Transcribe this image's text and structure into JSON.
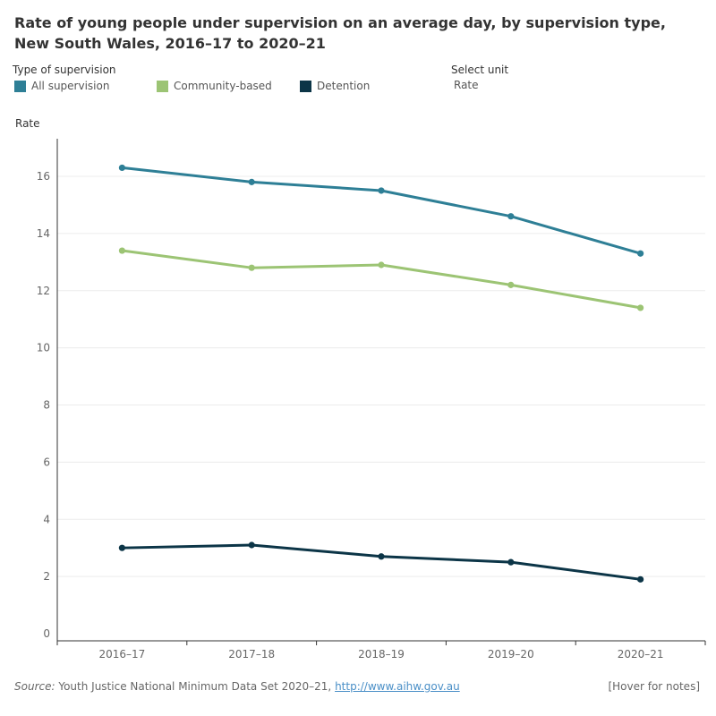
{
  "title": "Rate of young people under supervision on an average day, by supervision type, New South Wales, 2016–17 to 2020–21",
  "legend": {
    "title": "Type of supervision",
    "items": [
      {
        "label": "All supervision",
        "color": "#2e7f96"
      },
      {
        "label": "Community-based",
        "color": "#9cc474"
      },
      {
        "label": "Detention",
        "color": "#0c3547"
      }
    ]
  },
  "unit_selector": {
    "label": "Select unit",
    "value": "Rate"
  },
  "footer": {
    "source_label": "Source:",
    "source_text": " Youth Justice National Minimum Data Set 2020–21, ",
    "link": "http://www.aihw.gov.au",
    "hover_notes": "[Hover for notes]"
  },
  "chart_data": {
    "type": "line",
    "title": "Rate of young people under supervision on an average day, by supervision type, New South Wales, 2016–17 to 2020–21",
    "ylabel": "Rate",
    "xlabel": "",
    "categories": [
      "2016–17",
      "2017–18",
      "2018–19",
      "2019–20",
      "2020–21"
    ],
    "ylim": [
      0,
      17
    ],
    "yticks": [
      0,
      2,
      4,
      6,
      8,
      10,
      12,
      14,
      16
    ],
    "grid": true,
    "legend_position": "top-left",
    "series": [
      {
        "name": "All supervision",
        "color": "#2e7f96",
        "values": [
          16.3,
          15.8,
          15.5,
          14.6,
          13.3
        ]
      },
      {
        "name": "Community-based",
        "color": "#9cc474",
        "values": [
          13.4,
          12.8,
          12.9,
          12.2,
          11.4
        ]
      },
      {
        "name": "Detention",
        "color": "#0c3547",
        "values": [
          3.0,
          3.1,
          2.7,
          2.5,
          1.9
        ]
      }
    ]
  }
}
